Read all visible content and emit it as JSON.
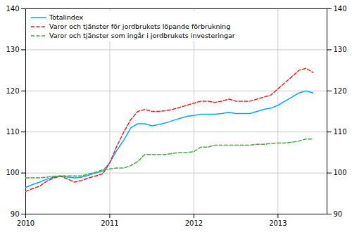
{
  "chart_data": {
    "type": "line",
    "x": [
      2010.0,
      2010.0833,
      2010.1667,
      2010.25,
      2010.3333,
      2010.4167,
      2010.5,
      2010.5833,
      2010.6667,
      2010.75,
      2010.8333,
      2010.9167,
      2011.0,
      2011.0833,
      2011.1667,
      2011.25,
      2011.3333,
      2011.4167,
      2011.5,
      2011.5833,
      2011.6667,
      2011.75,
      2011.8333,
      2011.9167,
      2012.0,
      2012.0833,
      2012.1667,
      2012.25,
      2012.3333,
      2012.4167,
      2012.5,
      2012.5833,
      2012.6667,
      2012.75,
      2012.8333,
      2012.9167,
      2013.0,
      2013.0833,
      2013.1667,
      2013.25,
      2013.3333,
      2013.4167
    ],
    "series": [
      {
        "name": "Totalindex",
        "color": "#00AAFF",
        "line_style": "solid",
        "values": [
          96.5,
          97.2,
          97.8,
          98.5,
          99.0,
          99.3,
          99.0,
          98.8,
          99.0,
          99.5,
          100.0,
          100.5,
          102.5,
          105.5,
          108.0,
          111.0,
          112.0,
          112.0,
          111.5,
          111.8,
          112.2,
          112.8,
          113.3,
          113.8,
          114.0,
          114.3,
          114.3,
          114.3,
          114.5,
          114.8,
          114.5,
          114.5,
          114.5,
          115.0,
          115.5,
          115.8,
          116.5,
          117.5,
          118.5,
          119.5,
          120.0,
          119.5
        ]
      },
      {
        "name": "Varor och tjänster för jordbrukets löpande förbrukning",
        "color": "#EE2222",
        "line_style": "dashed",
        "values": [
          95.5,
          96.2,
          96.8,
          98.0,
          98.8,
          99.2,
          98.5,
          97.8,
          98.2,
          98.8,
          99.3,
          99.8,
          102.5,
          106.5,
          110.0,
          113.0,
          115.0,
          115.5,
          115.0,
          115.0,
          115.2,
          115.5,
          116.0,
          116.5,
          117.0,
          117.5,
          117.5,
          117.2,
          117.5,
          118.0,
          117.5,
          117.5,
          117.5,
          118.0,
          118.5,
          119.0,
          120.5,
          122.0,
          123.5,
          125.0,
          125.5,
          124.5
        ]
      },
      {
        "name": "Varor och tjänster som ingår i jordbrukets investeringar",
        "color": "#44AA44",
        "line_style": "dashed",
        "values": [
          98.8,
          98.8,
          98.8,
          99.0,
          99.2,
          99.3,
          99.3,
          99.3,
          99.3,
          99.8,
          100.2,
          100.8,
          101.0,
          101.2,
          101.2,
          101.8,
          102.8,
          104.5,
          104.5,
          104.5,
          104.5,
          104.8,
          105.0,
          105.0,
          105.2,
          106.3,
          106.3,
          106.8,
          106.8,
          106.8,
          106.8,
          106.8,
          106.8,
          107.0,
          107.0,
          107.2,
          107.3,
          107.3,
          107.5,
          107.8,
          108.3,
          108.3
        ]
      }
    ],
    "xlim": [
      2010.0,
      2013.583
    ],
    "xticks": [
      2010,
      2011,
      2012,
      2013
    ],
    "ylim": [
      90,
      140
    ],
    "yticks": [
      90,
      100,
      110,
      120,
      130,
      140
    ],
    "y2lim": [
      90,
      140
    ],
    "y2ticks": [
      90,
      100,
      110,
      120,
      130,
      140
    ],
    "grid": true,
    "legend": "upper left"
  }
}
